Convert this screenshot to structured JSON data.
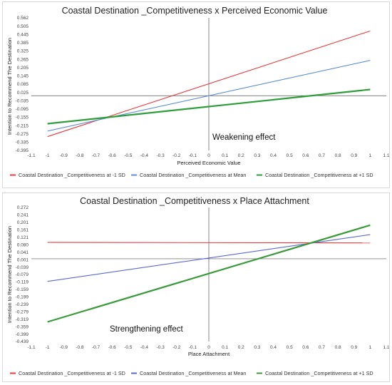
{
  "chart_data": [
    {
      "type": "line",
      "title": "Coastal Destination _Competitiveness x Perceived Economic Value",
      "xlabel": "Perceived Economic Value",
      "ylabel": "Intention to Recommend  The Destination",
      "xlim": [
        -1.1,
        1.1
      ],
      "ylim": [
        -0.395,
        0.562
      ],
      "x_ticks": [
        "-1.1",
        "-1",
        "-0.9",
        "-0.8",
        "-0.7",
        "-0.6",
        "-0.5",
        "-0.4",
        "-0.3",
        "-0.2",
        "-0.1",
        "0",
        "0.1",
        "0.2",
        "0.3",
        "0.4",
        "0.5",
        "0.6",
        "0.7",
        "0.8",
        "0.9",
        "1",
        "1.1"
      ],
      "y_ticks": [
        "0.562",
        "0.505",
        "0.445",
        "0.385",
        "0.325",
        "0.265",
        "0.205",
        "0.145",
        "0.085",
        "0.025",
        "-0.035",
        "-0.095",
        "-0.155",
        "-0.215",
        "-0.275",
        "-0.335",
        "-0.395"
      ],
      "annotation": "Weakening effect",
      "grid": false,
      "legend_position": "bottom",
      "series": [
        {
          "name": "Coastal Destination _Competitiveness at -1 SD",
          "color": "#e8393f",
          "x": [
            -1,
            1
          ],
          "values": [
            -0.295,
            0.467
          ]
        },
        {
          "name": "Coastal Destination _Competitiveness at Mean",
          "color": "#5b8fd6",
          "x": [
            -1,
            1
          ],
          "values": [
            -0.255,
            0.255
          ]
        },
        {
          "name": "Coastal Destination _Competitiveness at +1 SD",
          "color": "#2e9e3a",
          "x": [
            -1,
            1
          ],
          "values": [
            -0.202,
            0.045
          ]
        }
      ]
    },
    {
      "type": "line",
      "title": "Coastal Destination _Competitiveness x Place Attachment",
      "xlabel": "Place Attachment",
      "ylabel": "Intention to Recommend  The Destination",
      "xlim": [
        -1.1,
        1.1
      ],
      "ylim": [
        -0.439,
        0.272
      ],
      "x_ticks": [
        "-1.1",
        "-1",
        "-0.9",
        "-0.8",
        "-0.7",
        "-0.6",
        "-0.5",
        "-0.4",
        "-0.3",
        "-0.2",
        "-0.1",
        "0",
        "0.1",
        "0.2",
        "0.3",
        "0.4",
        "0.5",
        "0.6",
        "0.7",
        "0.8",
        "0.9",
        "1",
        "1.1"
      ],
      "y_ticks": [
        "0.272",
        "0.241",
        "0.201",
        "0.161",
        "0.121",
        "0.080",
        "0.041",
        "0.001",
        "-0.039",
        "-0.079",
        "-0.119",
        "-0.159",
        "-0.199",
        "-0.239",
        "-0.279",
        "-0.319",
        "-0.359",
        "-0.399",
        "-0.439"
      ],
      "annotation": "Strengthening effect",
      "grid": false,
      "legend_position": "bottom",
      "series": [
        {
          "name": "Coastal Destination _Competitiveness at -1 SD",
          "color": "#e8393f",
          "x": [
            -1,
            1
          ],
          "values": [
            0.087,
            0.084
          ]
        },
        {
          "name": "Coastal Destination _Competitiveness at Mean",
          "color": "#5a67d8",
          "x": [
            -1,
            1
          ],
          "values": [
            -0.12,
            0.128
          ]
        },
        {
          "name": "Coastal Destination _Competitiveness at +1 SD",
          "color": "#3c9a3c",
          "x": [
            -1,
            1
          ],
          "values": [
            -0.335,
            0.178
          ]
        }
      ]
    }
  ]
}
